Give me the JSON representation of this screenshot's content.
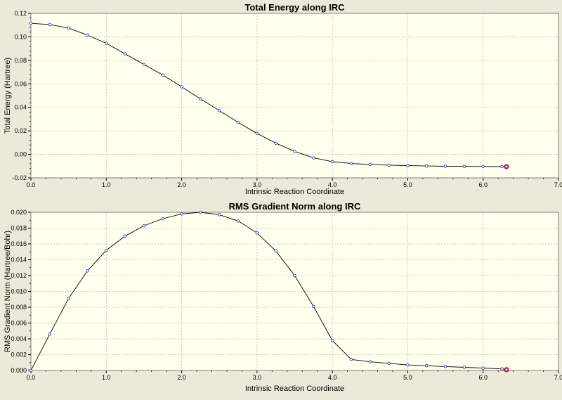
{
  "chart_data": [
    {
      "type": "line",
      "title": "Total Energy along IRC",
      "xlabel": "Intrinsic Reaction Coordinate",
      "ylabel": "Total Energy (Hartree)",
      "xlim": [
        0.0,
        7.0
      ],
      "ylim": [
        -0.02,
        0.12
      ],
      "xticks": [
        "0.0",
        "1.0",
        "2.0",
        "3.0",
        "4.0",
        "5.0",
        "6.0",
        "7.0"
      ],
      "yticks": [
        "-0.02",
        "0.00",
        "0.02",
        "0.04",
        "0.06",
        "0.08",
        "0.10",
        "0.12"
      ],
      "grid": true,
      "colors": {
        "line": "#000000",
        "marker": "#3a3ad0",
        "highlight": "#cc0000",
        "plot_bg": "#ffffee"
      },
      "x": [
        0.0,
        0.25,
        0.5,
        0.75,
        1.0,
        1.25,
        1.5,
        1.75,
        2.0,
        2.25,
        2.5,
        2.75,
        3.0,
        3.25,
        3.5,
        3.75,
        4.0,
        4.25,
        4.5,
        4.75,
        5.0,
        5.25,
        5.5,
        5.75,
        6.0,
        6.25,
        6.31
      ],
      "values": [
        0.1115,
        0.1105,
        0.1075,
        0.1015,
        0.0945,
        0.0855,
        0.0765,
        0.0675,
        0.0575,
        0.0472,
        0.0372,
        0.0272,
        0.0178,
        0.0095,
        0.0025,
        -0.003,
        -0.0062,
        -0.0078,
        -0.0086,
        -0.0092,
        -0.0096,
        -0.0099,
        -0.0101,
        -0.0102,
        -0.0103,
        -0.0104,
        -0.0105
      ]
    },
    {
      "type": "line",
      "title": "RMS Gradient Norm along IRC",
      "xlabel": "Intrinsic Reaction Coordinate",
      "ylabel": "RMS Gradient Norm (Hartree/Bohr)",
      "xlim": [
        0.0,
        7.0
      ],
      "ylim": [
        0.0,
        0.02
      ],
      "xticks": [
        "0.0",
        "1.0",
        "2.0",
        "3.0",
        "4.0",
        "5.0",
        "6.0",
        "7.0"
      ],
      "yticks": [
        "0.000",
        "0.002",
        "0.004",
        "0.006",
        "0.008",
        "0.010",
        "0.012",
        "0.014",
        "0.016",
        "0.018",
        "0.020"
      ],
      "grid": true,
      "colors": {
        "line": "#000000",
        "marker": "#3a3ad0",
        "highlight": "#cc0000",
        "plot_bg": "#ffffee"
      },
      "x": [
        0.0,
        0.25,
        0.5,
        0.75,
        1.0,
        1.25,
        1.5,
        1.75,
        2.0,
        2.25,
        2.5,
        2.75,
        3.0,
        3.25,
        3.5,
        3.75,
        4.0,
        4.25,
        4.5,
        4.75,
        5.0,
        5.25,
        5.5,
        5.75,
        6.0,
        6.25,
        6.31
      ],
      "values": [
        0.0,
        0.0046,
        0.0091,
        0.0126,
        0.0152,
        0.017,
        0.0183,
        0.0192,
        0.0198,
        0.02,
        0.0197,
        0.0189,
        0.0174,
        0.0151,
        0.012,
        0.0081,
        0.0038,
        0.0014,
        0.0011,
        0.0009,
        0.0007,
        0.0006,
        0.0005,
        0.0004,
        0.0003,
        0.0002,
        0.0001
      ]
    }
  ]
}
